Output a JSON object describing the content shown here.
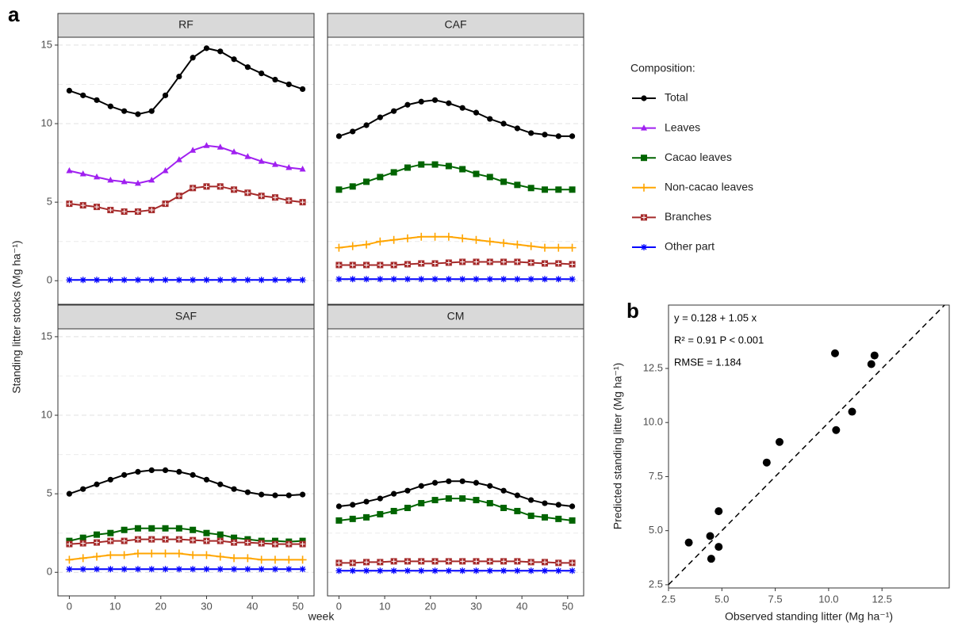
{
  "chart_data": [
    {
      "type": "line",
      "panel_label": "a",
      "ylabel": "Standing litter stocks (Mg ha⁻¹)",
      "xlabel": "week",
      "legend_title": "Composition:",
      "legend": "right",
      "series": [
        {
          "name": "Total",
          "color": "#000000",
          "marker": "circle"
        },
        {
          "name": "Leaves",
          "color": "#a020f0",
          "marker": "triangle"
        },
        {
          "name": "Cacao leaves",
          "color": "#006400",
          "marker": "square"
        },
        {
          "name": "Non-cacao leaves",
          "color": "#ffa500",
          "marker": "plus"
        },
        {
          "name": "Branches",
          "color": "#a52a2a",
          "marker": "square-cross"
        },
        {
          "name": "Other part",
          "color": "#0000ff",
          "marker": "asterisk"
        }
      ],
      "x": [
        0,
        3,
        6,
        9,
        12,
        15,
        18,
        21,
        24,
        27,
        30,
        33,
        36,
        39,
        42,
        45,
        48,
        51
      ],
      "xlim": [
        -2.5,
        53.5
      ],
      "xticks": [
        0,
        10,
        20,
        30,
        40,
        50
      ],
      "ylim": [
        -1.5,
        15.5
      ],
      "yticks": [
        0,
        5,
        10,
        15
      ],
      "minor_yticks": [
        2.5,
        7.5,
        12.5
      ],
      "grid": true,
      "panels": [
        {
          "title": "RF",
          "values": [
            [
              12.1,
              11.8,
              11.5,
              11.1,
              10.8,
              10.6,
              10.8,
              11.8,
              13.0,
              14.2,
              14.8,
              14.6,
              14.1,
              13.6,
              13.2,
              12.8,
              12.5,
              12.2
            ],
            [
              7.0,
              6.8,
              6.6,
              6.4,
              6.3,
              6.2,
              6.4,
              7.0,
              7.7,
              8.3,
              8.6,
              8.5,
              8.2,
              7.9,
              7.6,
              7.4,
              7.2,
              7.1
            ],
            null,
            null,
            [
              4.9,
              4.8,
              4.7,
              4.5,
              4.4,
              4.4,
              4.5,
              4.9,
              5.4,
              5.9,
              6.0,
              6.0,
              5.8,
              5.6,
              5.4,
              5.3,
              5.1,
              5.0
            ],
            [
              0.05,
              0.05,
              0.05,
              0.05,
              0.05,
              0.05,
              0.05,
              0.05,
              0.05,
              0.05,
              0.05,
              0.05,
              0.05,
              0.05,
              0.05,
              0.05,
              0.05,
              0.05
            ]
          ]
        },
        {
          "title": "CAF",
          "values": [
            [
              9.2,
              9.5,
              9.9,
              10.4,
              10.8,
              11.2,
              11.4,
              11.5,
              11.3,
              11.0,
              10.7,
              10.3,
              10.0,
              9.7,
              9.4,
              9.3,
              9.2,
              9.2
            ],
            null,
            [
              5.8,
              6.0,
              6.3,
              6.6,
              6.9,
              7.2,
              7.4,
              7.4,
              7.3,
              7.1,
              6.8,
              6.6,
              6.3,
              6.1,
              5.9,
              5.8,
              5.8,
              5.8
            ],
            [
              2.1,
              2.2,
              2.3,
              2.5,
              2.6,
              2.7,
              2.8,
              2.8,
              2.8,
              2.7,
              2.6,
              2.5,
              2.4,
              2.3,
              2.2,
              2.1,
              2.1,
              2.1
            ],
            [
              1.0,
              1.0,
              1.0,
              1.0,
              1.0,
              1.05,
              1.1,
              1.1,
              1.15,
              1.2,
              1.2,
              1.2,
              1.2,
              1.2,
              1.15,
              1.1,
              1.1,
              1.05
            ],
            [
              0.1,
              0.1,
              0.1,
              0.1,
              0.1,
              0.1,
              0.1,
              0.1,
              0.1,
              0.1,
              0.1,
              0.1,
              0.1,
              0.1,
              0.1,
              0.1,
              0.1,
              0.1
            ]
          ]
        },
        {
          "title": "SAF",
          "values": [
            [
              5.0,
              5.3,
              5.6,
              5.9,
              6.2,
              6.4,
              6.5,
              6.5,
              6.4,
              6.2,
              5.9,
              5.6,
              5.3,
              5.1,
              4.95,
              4.9,
              4.9,
              4.95
            ],
            null,
            [
              2.0,
              2.2,
              2.4,
              2.5,
              2.7,
              2.8,
              2.8,
              2.8,
              2.8,
              2.7,
              2.5,
              2.4,
              2.2,
              2.1,
              2.0,
              2.0,
              1.95,
              2.0
            ],
            [
              0.8,
              0.9,
              1.0,
              1.1,
              1.1,
              1.2,
              1.2,
              1.2,
              1.2,
              1.1,
              1.1,
              1.0,
              0.9,
              0.9,
              0.8,
              0.8,
              0.8,
              0.8
            ],
            [
              1.8,
              1.85,
              1.9,
              2.0,
              2.0,
              2.1,
              2.1,
              2.1,
              2.1,
              2.05,
              2.0,
              2.0,
              1.9,
              1.9,
              1.85,
              1.8,
              1.8,
              1.8
            ],
            [
              0.2,
              0.2,
              0.2,
              0.2,
              0.2,
              0.2,
              0.2,
              0.2,
              0.2,
              0.2,
              0.2,
              0.2,
              0.2,
              0.2,
              0.2,
              0.2,
              0.2,
              0.2
            ]
          ]
        },
        {
          "title": "CM",
          "values": [
            [
              4.2,
              4.3,
              4.5,
              4.7,
              5.0,
              5.2,
              5.5,
              5.7,
              5.8,
              5.8,
              5.7,
              5.5,
              5.2,
              4.9,
              4.6,
              4.4,
              4.3,
              4.2
            ],
            null,
            [
              3.3,
              3.4,
              3.5,
              3.7,
              3.9,
              4.1,
              4.4,
              4.6,
              4.7,
              4.7,
              4.6,
              4.4,
              4.1,
              3.9,
              3.6,
              3.5,
              3.4,
              3.3
            ],
            null,
            [
              0.6,
              0.6,
              0.65,
              0.65,
              0.7,
              0.7,
              0.7,
              0.7,
              0.7,
              0.7,
              0.7,
              0.7,
              0.7,
              0.7,
              0.65,
              0.65,
              0.6,
              0.6
            ],
            [
              0.1,
              0.1,
              0.1,
              0.1,
              0.1,
              0.1,
              0.1,
              0.1,
              0.1,
              0.1,
              0.1,
              0.1,
              0.1,
              0.1,
              0.1,
              0.1,
              0.1,
              0.1
            ]
          ]
        }
      ]
    },
    {
      "type": "scatter",
      "panel_label": "b",
      "xlabel": "Observed standing litter (Mg ha⁻¹)",
      "ylabel": "Predicted standing litter (Mg ha⁻¹)",
      "annotations": [
        "y = 0.128 + 1.05 x",
        "R² = 0.91  P < 0.001",
        "RMSE = 1.184"
      ],
      "color": "#000000",
      "identity_line": true,
      "grid": false,
      "x": [
        3.45,
        4.45,
        4.5,
        4.85,
        4.85,
        7.1,
        7.7,
        10.3,
        10.35,
        11.1,
        12.0,
        12.15
      ],
      "values": [
        4.45,
        4.75,
        3.7,
        4.25,
        5.9,
        8.15,
        9.1,
        13.2,
        9.65,
        10.5,
        12.7,
        13.1
      ],
      "xlim": [
        2.5,
        15.65
      ],
      "ylim": [
        2.35,
        15.43
      ],
      "xticks": [
        {
          "value": 2.5,
          "label": "2.5"
        },
        {
          "value": 5,
          "label": "5.0"
        },
        {
          "value": 7.5,
          "label": "7.5"
        },
        {
          "value": 10,
          "label": "10.0"
        },
        {
          "value": 12.5,
          "label": "12.5"
        }
      ],
      "yticks": [
        {
          "value": 2.5,
          "label": "2.5"
        },
        {
          "value": 5,
          "label": "5.0"
        },
        {
          "value": 7.5,
          "label": "7.5"
        },
        {
          "value": 10,
          "label": "10.0"
        },
        {
          "value": 12.5,
          "label": "12.5"
        }
      ]
    }
  ]
}
